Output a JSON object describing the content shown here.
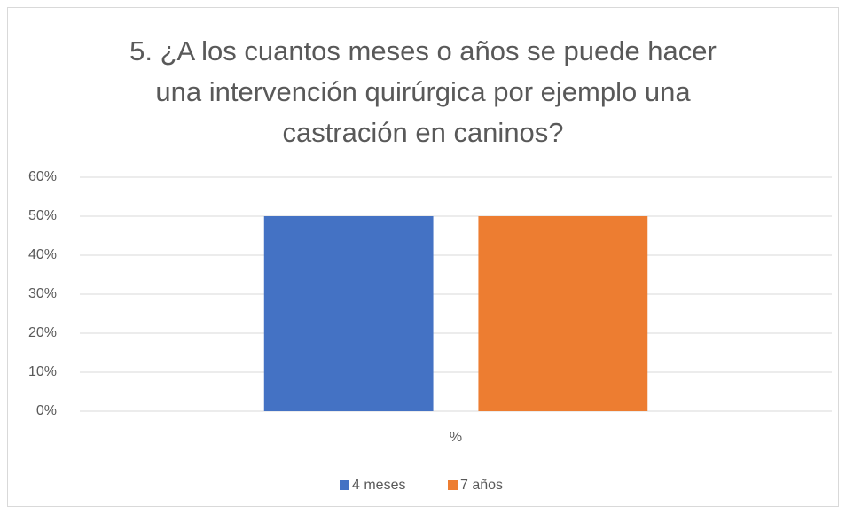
{
  "chart_data": {
    "type": "bar",
    "title": [
      "5.  ¿A los cuantos meses o años se puede hacer",
      "una intervención quirúrgica por ejemplo una",
      "castración en caninos?"
    ],
    "categories": [
      "%"
    ],
    "series": [
      {
        "name": "4 meses",
        "color": "#4472c4",
        "values": [
          50
        ]
      },
      {
        "name": "7 años",
        "color": "#ed7d31",
        "values": [
          50
        ]
      }
    ],
    "ylim": [
      0,
      60
    ],
    "yticks": [
      {
        "value": 0,
        "label": "0%"
      },
      {
        "value": 10,
        "label": "10%"
      },
      {
        "value": 20,
        "label": "20%"
      },
      {
        "value": 30,
        "label": "30%"
      },
      {
        "value": 40,
        "label": "40%"
      },
      {
        "value": 50,
        "label": "50%"
      },
      {
        "value": 60,
        "label": "60%"
      }
    ],
    "grid": true,
    "legend": "bottom"
  }
}
